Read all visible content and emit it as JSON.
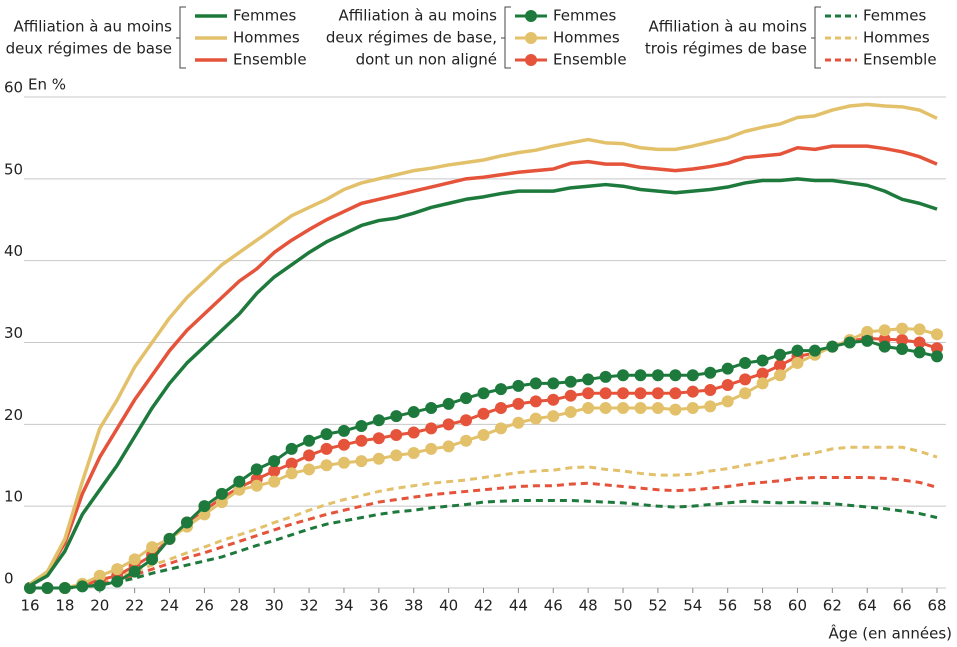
{
  "chart_data": {
    "type": "line",
    "y_label": "En %",
    "x_label": "Âge (en années)",
    "x": [
      16,
      17,
      18,
      19,
      20,
      21,
      22,
      23,
      24,
      25,
      26,
      27,
      28,
      29,
      30,
      31,
      32,
      33,
      34,
      35,
      36,
      37,
      38,
      39,
      40,
      41,
      42,
      43,
      44,
      45,
      46,
      47,
      48,
      49,
      50,
      51,
      52,
      53,
      54,
      55,
      56,
      57,
      58,
      59,
      60,
      61,
      62,
      63,
      64,
      65,
      66,
      67,
      68
    ],
    "xlim": [
      16,
      68
    ],
    "xticks": [
      16,
      18,
      20,
      22,
      24,
      26,
      28,
      30,
      32,
      34,
      36,
      38,
      40,
      42,
      44,
      46,
      48,
      50,
      52,
      54,
      56,
      58,
      60,
      62,
      64,
      66,
      68
    ],
    "ylim": [
      0,
      60
    ],
    "yticks": [
      0,
      10,
      20,
      30,
      40,
      50,
      60
    ],
    "grid": true,
    "groups": [
      {
        "title": [
          "Affiliation à au moins",
          "deux régimes de base"
        ],
        "style": "solid",
        "series": [
          {
            "name": "Femmes",
            "color": "#1e7a3c",
            "values": [
              0.3,
              1.5,
              4.5,
              9,
              12,
              15,
              18.5,
              22,
              25,
              27.5,
              29.5,
              31.5,
              33.5,
              36,
              38,
              39.5,
              41,
              42.3,
              43.3,
              44.3,
              44.9,
              45.2,
              45.8,
              46.5,
              47,
              47.5,
              47.8,
              48.2,
              48.5,
              48.5,
              48.5,
              48.9,
              49.1,
              49.3,
              49.1,
              48.7,
              48.5,
              48.3,
              48.5,
              48.7,
              49,
              49.5,
              49.8,
              49.8,
              50,
              49.8,
              49.8,
              49.5,
              49.2,
              48.5,
              47.5,
              47,
              46.3
            ]
          },
          {
            "name": "Hommes",
            "color": "#e3c16b",
            "values": [
              0.5,
              2,
              6,
              13,
              19.5,
              23,
              27,
              30,
              33,
              35.5,
              37.5,
              39.5,
              41,
              42.5,
              44,
              45.5,
              46.5,
              47.5,
              48.7,
              49.5,
              50,
              50.5,
              51,
              51.3,
              51.7,
              52,
              52.3,
              52.8,
              53.2,
              53.5,
              54,
              54.4,
              54.8,
              54.4,
              54.3,
              53.8,
              53.6,
              53.6,
              54,
              54.5,
              55,
              55.8,
              56.3,
              56.7,
              57.5,
              57.7,
              58.4,
              58.9,
              59.1,
              58.9,
              58.8,
              58.4,
              57.4
            ]
          },
          {
            "name": "Ensemble",
            "color": "#e5533b",
            "values": [
              0.3,
              2,
              5.5,
              11.5,
              16,
              19.5,
              23,
              26,
              29,
              31.5,
              33.5,
              35.5,
              37.5,
              39,
              41,
              42.5,
              43.8,
              45,
              46,
              47,
              47.5,
              48,
              48.5,
              49,
              49.5,
              50,
              50.2,
              50.5,
              50.8,
              51,
              51.2,
              51.9,
              52.1,
              51.8,
              51.8,
              51.4,
              51.2,
              51,
              51.2,
              51.5,
              51.9,
              52.6,
              52.8,
              53,
              53.8,
              53.6,
              54,
              54,
              54,
              53.7,
              53.3,
              52.7,
              51.8
            ]
          }
        ]
      },
      {
        "title": [
          "Affiliation à au moins",
          "deux régimes de base,",
          "dont un non aligné"
        ],
        "style": "marker",
        "series": [
          {
            "name": "Femmes",
            "color": "#1e7a3c",
            "values": [
              0,
              0,
              0,
              0.2,
              0.3,
              0.8,
              2,
              3.5,
              6,
              8,
              10,
              11.5,
              13,
              14.5,
              15.5,
              17,
              18,
              18.8,
              19.2,
              19.8,
              20.5,
              21,
              21.5,
              22,
              22.5,
              23.2,
              23.8,
              24.3,
              24.7,
              25,
              25,
              25.2,
              25.5,
              25.8,
              26,
              26,
              26,
              26,
              26,
              26.3,
              26.8,
              27.5,
              27.8,
              28.5,
              29,
              29,
              29.5,
              30,
              30.2,
              29.5,
              29.2,
              28.8,
              28.3
            ]
          },
          {
            "name": "Hommes",
            "color": "#e3c16b",
            "values": [
              0,
              0,
              0,
              0.5,
              1.5,
              2.3,
              3.5,
              5,
              6,
              7.5,
              9,
              10.5,
              12,
              12.5,
              13,
              14,
              14.5,
              15,
              15.3,
              15.5,
              15.8,
              16.2,
              16.5,
              17,
              17.3,
              18,
              18.7,
              19.5,
              20.2,
              20.7,
              21,
              21.5,
              22,
              22,
              22,
              22,
              22,
              21.8,
              22,
              22.2,
              22.8,
              23.8,
              25,
              26,
              27.5,
              28.5,
              29.5,
              30.3,
              31.3,
              31.5,
              31.7,
              31.6,
              31
            ]
          },
          {
            "name": "Ensemble",
            "color": "#e5533b",
            "values": [
              0,
              0,
              0,
              0.3,
              1,
              1.5,
              2.7,
              4,
              6,
              8,
              9.5,
              11,
              12.3,
              13.3,
              14.3,
              15.2,
              16.2,
              17,
              17.5,
              18,
              18.3,
              18.7,
              19,
              19.5,
              20,
              20.5,
              21.3,
              22,
              22.5,
              22.8,
              23,
              23.5,
              23.8,
              23.8,
              23.8,
              23.8,
              23.8,
              23.8,
              24,
              24.2,
              24.8,
              25.5,
              26.2,
              27.2,
              28.3,
              28.7,
              29.5,
              30.2,
              30.5,
              30.4,
              30.3,
              30,
              29.3
            ]
          }
        ]
      },
      {
        "title": [
          "Affiliation à au moins",
          "trois régimes de base"
        ],
        "style": "dashed",
        "series": [
          {
            "name": "Femmes",
            "color": "#1e7a3c",
            "values": [
              0,
              0,
              0,
              0.1,
              0.4,
              0.7,
              1.2,
              1.8,
              2.3,
              2.8,
              3.3,
              3.8,
              4.5,
              5.2,
              5.8,
              6.5,
              7.2,
              7.8,
              8.2,
              8.6,
              9,
              9.3,
              9.5,
              9.8,
              10,
              10.2,
              10.5,
              10.6,
              10.7,
              10.7,
              10.7,
              10.7,
              10.6,
              10.5,
              10.4,
              10.2,
              10,
              9.9,
              10,
              10.2,
              10.4,
              10.6,
              10.5,
              10.4,
              10.5,
              10.4,
              10.3,
              10.1,
              9.9,
              9.7,
              9.4,
              9.1,
              8.6
            ]
          },
          {
            "name": "Hommes",
            "color": "#e3c16b",
            "values": [
              0,
              0,
              0,
              0.3,
              0.8,
              1.3,
              2,
              2.8,
              3.5,
              4.3,
              5,
              5.8,
              6.5,
              7.2,
              8,
              8.7,
              9.5,
              10.2,
              10.8,
              11.3,
              11.8,
              12.2,
              12.5,
              12.8,
              13,
              13.2,
              13.5,
              13.8,
              14.1,
              14.3,
              14.4,
              14.7,
              14.8,
              14.5,
              14.3,
              14,
              13.8,
              13.8,
              13.9,
              14.3,
              14.6,
              15,
              15.4,
              15.8,
              16.2,
              16.5,
              17,
              17.2,
              17.2,
              17.2,
              17.2,
              16.7,
              16
            ]
          },
          {
            "name": "Ensemble",
            "color": "#e5533b",
            "values": [
              0,
              0,
              0,
              0.2,
              0.6,
              1,
              1.6,
              2.3,
              3,
              3.7,
              4.3,
              5,
              5.7,
              6.4,
              7.1,
              7.8,
              8.4,
              9,
              9.5,
              10,
              10.5,
              10.8,
              11.1,
              11.4,
              11.6,
              11.8,
              12,
              12.2,
              12.4,
              12.5,
              12.5,
              12.7,
              12.8,
              12.6,
              12.4,
              12.2,
              12,
              11.9,
              12,
              12.2,
              12.4,
              12.7,
              12.9,
              13.1,
              13.4,
              13.5,
              13.5,
              13.5,
              13.5,
              13.4,
              13.2,
              12.9,
              12.3
            ]
          }
        ]
      }
    ]
  }
}
